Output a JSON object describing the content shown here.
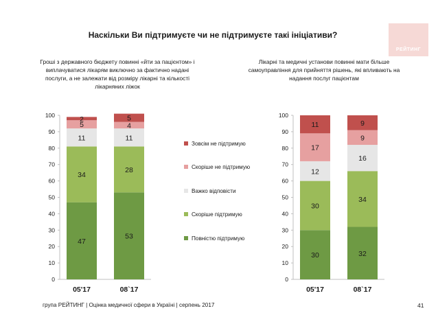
{
  "title": "Наскільки Ви підтримуєте чи не підтримуєте такі ініціативи?",
  "logo_text": "РЕЙТИНГ",
  "footer": "група РЕЙТИНГ  |  Оцінка медичної сфери в Україні  |  серпень 2017",
  "page_number": "41",
  "legend": [
    {
      "label": "Зовсім не підтримую",
      "color": "#c0504d"
    },
    {
      "label": "Скоріше не підтримую",
      "color": "#e6a0a0"
    },
    {
      "label": "Важко відповісти",
      "color": "#e6e6e6"
    },
    {
      "label": "Скоріше підтримую",
      "color": "#9bbb59"
    },
    {
      "label": "Повністю підтримую",
      "color": "#6e9a44"
    }
  ],
  "chart_data": [
    {
      "type": "bar",
      "stacked": true,
      "subtitle": "Гроші з державного бюджету повинні «йти за пацієнтом» і виплачуватися лікарям виключно за фактично надані послуги, а не залежати від розміру лікарні та кількості лікарняних ліжок",
      "categories": [
        "05'17",
        "08`17"
      ],
      "ylim": [
        0,
        100
      ],
      "yticks": [
        "0",
        "10",
        "20",
        "30",
        "40",
        "50",
        "60",
        "70",
        "80",
        "90",
        "100"
      ],
      "series": [
        {
          "name": "Повністю підтримую",
          "values": [
            47,
            53
          ]
        },
        {
          "name": "Скоріше підтримую",
          "values": [
            34,
            28
          ]
        },
        {
          "name": "Важко відповісти",
          "values": [
            11,
            11
          ]
        },
        {
          "name": "Скоріше не підтримую",
          "values": [
            5,
            4
          ]
        },
        {
          "name": "Зовсім не підтримую",
          "values": [
            2,
            5
          ]
        }
      ]
    },
    {
      "type": "bar",
      "stacked": true,
      "subtitle": "Лікарні та медичні установи повинні мати більше самоуправління для прийняття рішень, які впливають на надання послуг пацієнтам",
      "categories": [
        "05'17",
        "08`17"
      ],
      "ylim": [
        0,
        100
      ],
      "yticks": [
        "0",
        "10",
        "20",
        "30",
        "40",
        "50",
        "60",
        "70",
        "80",
        "90",
        "100"
      ],
      "series": [
        {
          "name": "Повністю підтримую",
          "values": [
            30,
            32
          ]
        },
        {
          "name": "Скоріше підтримую",
          "values": [
            30,
            34
          ]
        },
        {
          "name": "Важко відповісти",
          "values": [
            12,
            16
          ]
        },
        {
          "name": "Скоріше не підтримую",
          "values": [
            17,
            9
          ]
        },
        {
          "name": "Зовсім не підтримую",
          "values": [
            11,
            9
          ]
        }
      ]
    }
  ]
}
